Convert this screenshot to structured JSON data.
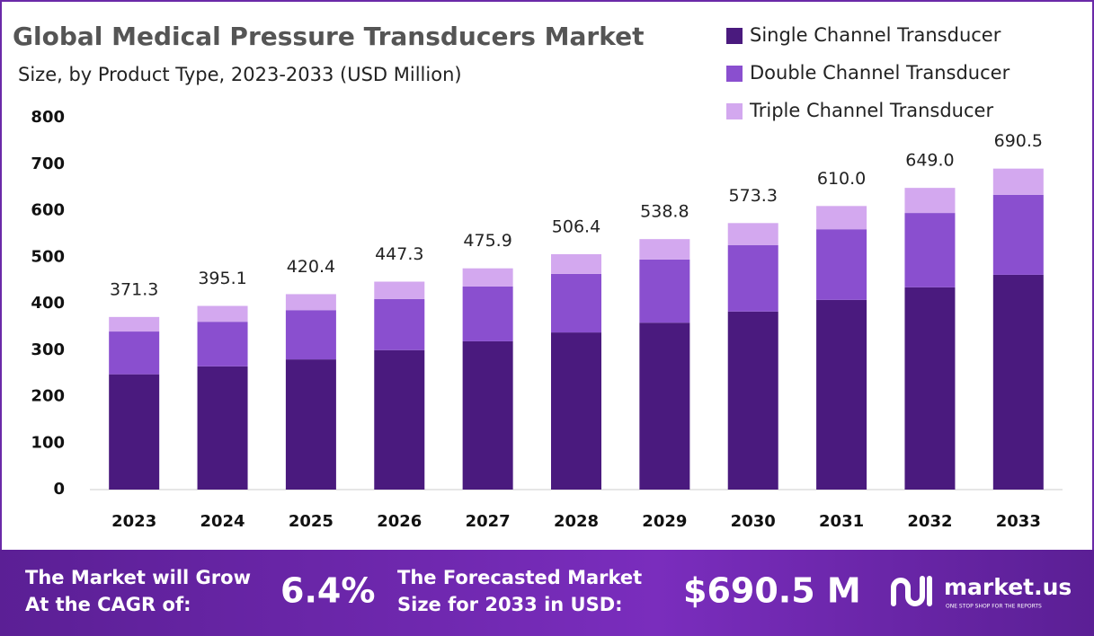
{
  "chart_data": {
    "type": "stacked_bar",
    "title": "Global Medical Pressure Transducers Market",
    "subtitle": "Size, by Product Type, 2023-2033 (USD Million)",
    "categories": [
      "2023",
      "2024",
      "2025",
      "2026",
      "2027",
      "2028",
      "2029",
      "2030",
      "2031",
      "2032",
      "2033"
    ],
    "series": [
      {
        "name": "Single Channel Transducer",
        "color": "#4a1a7e",
        "values": [
          248,
          265,
          280,
          300,
          319,
          338,
          359,
          383,
          408,
          435,
          462
        ]
      },
      {
        "name": "Double Channel Transducer",
        "color": "#8a4fcf",
        "values": [
          92,
          96,
          106,
          110,
          118,
          126,
          136,
          143,
          152,
          160,
          172
        ]
      },
      {
        "name": "Triple Channel Transducer",
        "color": "#d3a8ef",
        "values": [
          31.3,
          34.1,
          34.4,
          37.3,
          38.9,
          42.4,
          43.8,
          47.3,
          50,
          54,
          56.5
        ]
      }
    ],
    "totals": [
      371.3,
      395.1,
      420.4,
      447.3,
      475.9,
      506.4,
      538.8,
      573.3,
      610.0,
      649.0,
      690.5
    ],
    "total_labels": [
      "371.3",
      "395.1",
      "420.4",
      "447.3",
      "475.9",
      "506.4",
      "538.8",
      "573.3",
      "610.0",
      "649.0",
      "690.5"
    ],
    "ylim": [
      0,
      800
    ],
    "yticks": [
      0,
      100,
      200,
      300,
      400,
      500,
      600,
      700,
      800
    ],
    "legend": "top-right"
  },
  "footer": {
    "cagr_text_1": "The Market will Grow",
    "cagr_text_2": "At the CAGR of:",
    "cagr": "6.4%",
    "forecast_text_1": "The Forecasted Market",
    "forecast_text_2": "Size for 2033 in USD:",
    "forecast": "$690.5 M",
    "brand": "market.us",
    "tagline": "ONE STOP SHOP FOR THE REPORTS"
  }
}
